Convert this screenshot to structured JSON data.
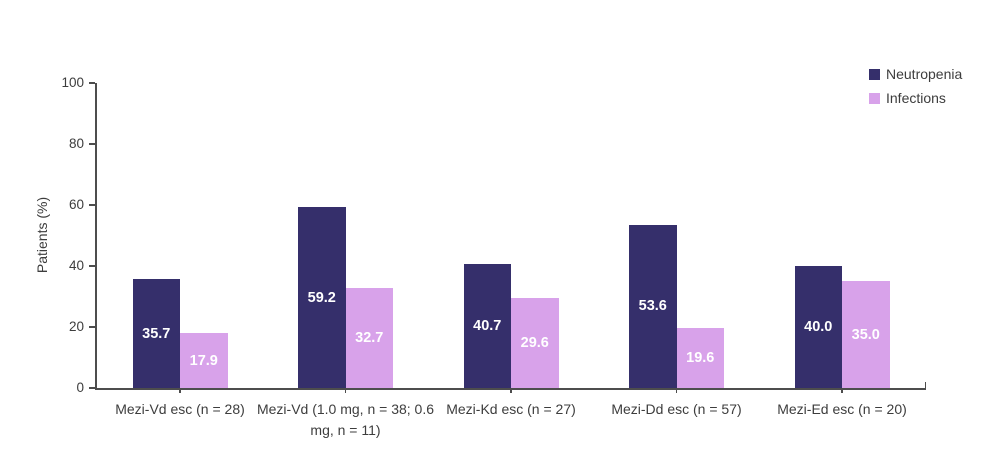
{
  "chart_data": {
    "type": "bar",
    "title": "",
    "xlabel": "",
    "ylabel": "Patients (%)",
    "ylim": [
      0,
      100
    ],
    "yticks": [
      0,
      20,
      40,
      60,
      80,
      100
    ],
    "grid": false,
    "legend_position": "top-right",
    "categories": [
      "Mezi-Vd esc (n = 28)",
      "Mezi-Vd (1.0 mg, n = 38; 0.6 mg, n = 11)",
      "Mezi-Kd esc (n = 27)",
      "Mezi-Dd esc (n = 57)",
      "Mezi-Ed esc (n = 20)"
    ],
    "series": [
      {
        "name": "Neutropenia",
        "color": "#352F6B",
        "values": [
          35.7,
          59.2,
          40.7,
          53.6,
          40.0
        ]
      },
      {
        "name": "Infections",
        "color": "#D8A2EA",
        "values": [
          17.9,
          32.7,
          29.6,
          19.6,
          35.0
        ]
      }
    ],
    "value_label_color": "#ffffff",
    "value_label_decimals": 1,
    "axis_color": "#4d4d4d",
    "text_color": "#3d3d3d"
  }
}
